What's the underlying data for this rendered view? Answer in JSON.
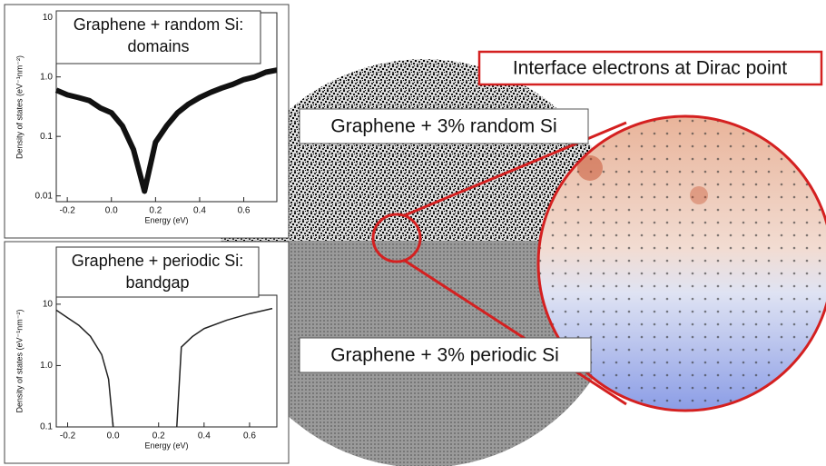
{
  "chart_data": [
    {
      "type": "line",
      "title": [
        "Graphene + random Si:",
        "domains"
      ],
      "xlabel": "Energy (eV)",
      "ylabel": "Density of states (eV⁻¹nm⁻²)",
      "x": [
        -0.25,
        -0.2,
        -0.15,
        -0.1,
        -0.05,
        0,
        0.05,
        0.1,
        0.15,
        0.2,
        0.25,
        0.3,
        0.35,
        0.4,
        0.45,
        0.5,
        0.55,
        0.6,
        0.65,
        0.7,
        0.75
      ],
      "series": [
        {
          "color": "#111111",
          "values": [
            0.6,
            0.5,
            0.45,
            0.4,
            0.3,
            0.25,
            0.15,
            0.06,
            0.012,
            0.08,
            0.15,
            0.25,
            0.35,
            0.45,
            0.55,
            0.65,
            0.75,
            0.9,
            1.0,
            1.2,
            1.3
          ]
        }
      ],
      "xlim": [
        -0.25,
        0.75
      ],
      "xticks": [
        -0.2,
        {
          "value": 0,
          "label": "0.0"
        },
        0.2,
        0.4,
        0.6
      ],
      "ylim": [
        0.008,
        12
      ],
      "yticks": [
        0.01,
        0.1,
        {
          "value": 1,
          "label": "1.0"
        },
        10
      ],
      "ylog": true
    },
    {
      "type": "line",
      "title": [
        "Graphene + periodic Si:",
        "bandgap"
      ],
      "xlabel": "Energy (eV)",
      "ylabel": "Density of states (eV⁻¹nm⁻²)",
      "x": [
        -0.25,
        -0.2,
        -0.15,
        -0.1,
        -0.05,
        -0.02,
        0,
        0.14,
        0.28,
        0.3,
        0.35,
        0.4,
        0.5,
        0.6,
        0.7
      ],
      "series": [
        {
          "color": "#222222",
          "values": [
            8,
            6,
            4.5,
            3,
            1.5,
            0.6,
            0.1,
            null,
            0.1,
            2,
            3,
            4,
            5.5,
            7,
            8.5
          ]
        }
      ],
      "xlim": [
        -0.25,
        0.72
      ],
      "xticks": [
        -0.2,
        {
          "value": 0,
          "label": "0.0"
        },
        0.2,
        0.4,
        0.6
      ],
      "ylim": [
        0.1,
        14
      ],
      "yticks": [
        0.1,
        {
          "value": 1,
          "label": "1.0"
        },
        10
      ],
      "ylog": true
    }
  ],
  "annotations": {
    "dirac": "Interface electrons at Dirac point",
    "random": "Graphene + 3% random Si",
    "periodic": "Graphene + 3% periodic Si"
  }
}
